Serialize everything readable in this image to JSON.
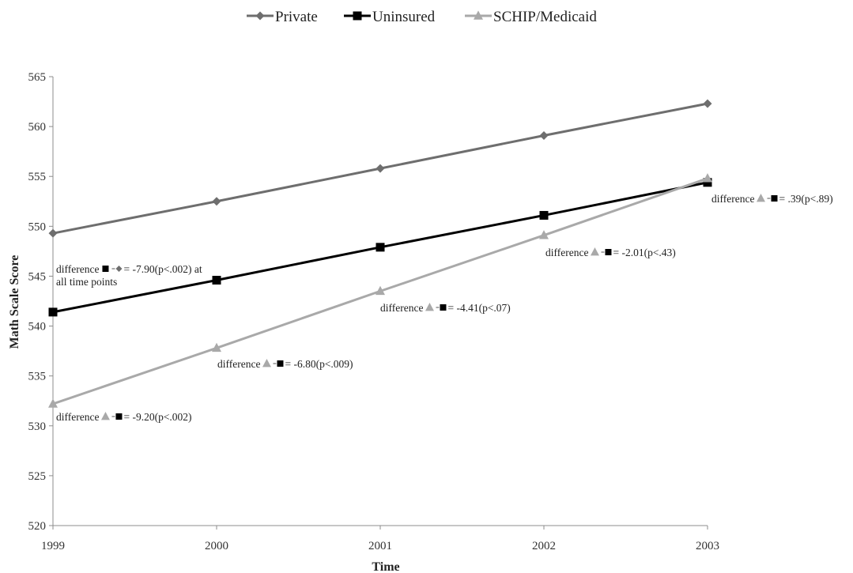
{
  "chart_data": {
    "type": "line",
    "title": "",
    "xlabel": "Time",
    "ylabel": "Math Scale Score",
    "x": [
      "1999",
      "2000",
      "2001",
      "2002",
      "2003"
    ],
    "ylim": [
      520,
      565
    ],
    "yticks": [
      "520",
      "525",
      "530",
      "535",
      "540",
      "545",
      "550",
      "555",
      "560",
      "565"
    ],
    "grid": false,
    "legend_position": "top-center",
    "series": [
      {
        "name": "Private",
        "marker": "diamond",
        "color": "#6e6e6e",
        "values": [
          549.3,
          552.5,
          555.8,
          559.1,
          562.3
        ]
      },
      {
        "name": "Uninsured",
        "marker": "square",
        "color": "#000000",
        "values": [
          541.4,
          544.6,
          547.9,
          551.1,
          554.4
        ]
      },
      {
        "name": "SCHIP/Medicaid",
        "marker": "triangle",
        "color": "#a9a9a9",
        "values": [
          532.2,
          537.8,
          543.5,
          549.1,
          554.8
        ]
      }
    ],
    "annotations": [
      {
        "x": "1999",
        "prefix": "difference",
        "left_marker": "square",
        "right_marker": "diamond",
        "text": "= -7.90(p<.002) at",
        "text2": "all time points"
      },
      {
        "x": "1999",
        "prefix": "difference",
        "left_marker": "triangle",
        "right_marker": "square",
        "text": "= -9.20(p<.002)"
      },
      {
        "x": "2000",
        "prefix": "difference",
        "left_marker": "triangle",
        "right_marker": "square",
        "text": "= -6.80(p<.009)"
      },
      {
        "x": "2001",
        "prefix": "difference",
        "left_marker": "triangle",
        "right_marker": "square",
        "text": "= -4.41(p<.07)"
      },
      {
        "x": "2002",
        "prefix": "difference",
        "left_marker": "triangle",
        "right_marker": "square",
        "text": "= -2.01(p<.43)"
      },
      {
        "x": "2003",
        "prefix": "difference",
        "left_marker": "triangle",
        "right_marker": "square",
        "text": "= .39(p<.89)"
      }
    ]
  }
}
